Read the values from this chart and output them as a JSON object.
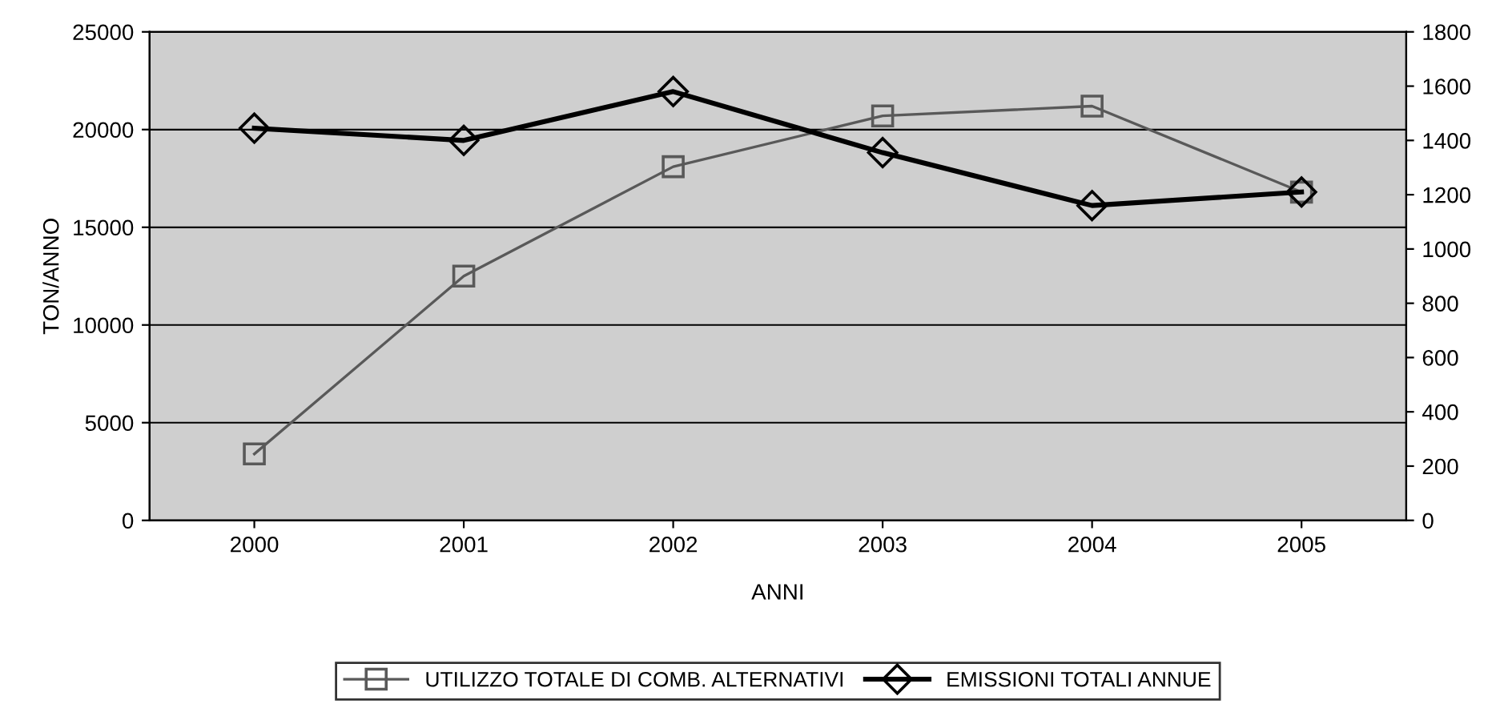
{
  "chart_data": {
    "type": "line",
    "xlabel": "ANNI",
    "ylabel": "TON/ANNO",
    "categories": [
      "2000",
      "2001",
      "2002",
      "2003",
      "2004",
      "2005"
    ],
    "series": [
      {
        "name": "UTILIZZO TOTALE DI COMB. ALTERNATIVI",
        "color": "#595959",
        "marker": "square",
        "values": [
          3400,
          12500,
          18100,
          20700,
          21200,
          16800
        ]
      },
      {
        "name": "EMISSIONI TOTALI ANNUE",
        "color": "#000000",
        "marker": "diamond",
        "axis": "y2",
        "values": [
          1445,
          1400,
          1580,
          1355,
          1160,
          1210
        ]
      }
    ],
    "ylim": [
      0,
      25000
    ],
    "yticks": [
      0,
      5000,
      10000,
      15000,
      20000,
      25000
    ],
    "y2lim": [
      0,
      1800
    ],
    "y2ticks": [
      0,
      200,
      400,
      600,
      800,
      1000,
      1200,
      1400,
      1600,
      1800
    ],
    "grid": "y",
    "legend": "bottom"
  }
}
